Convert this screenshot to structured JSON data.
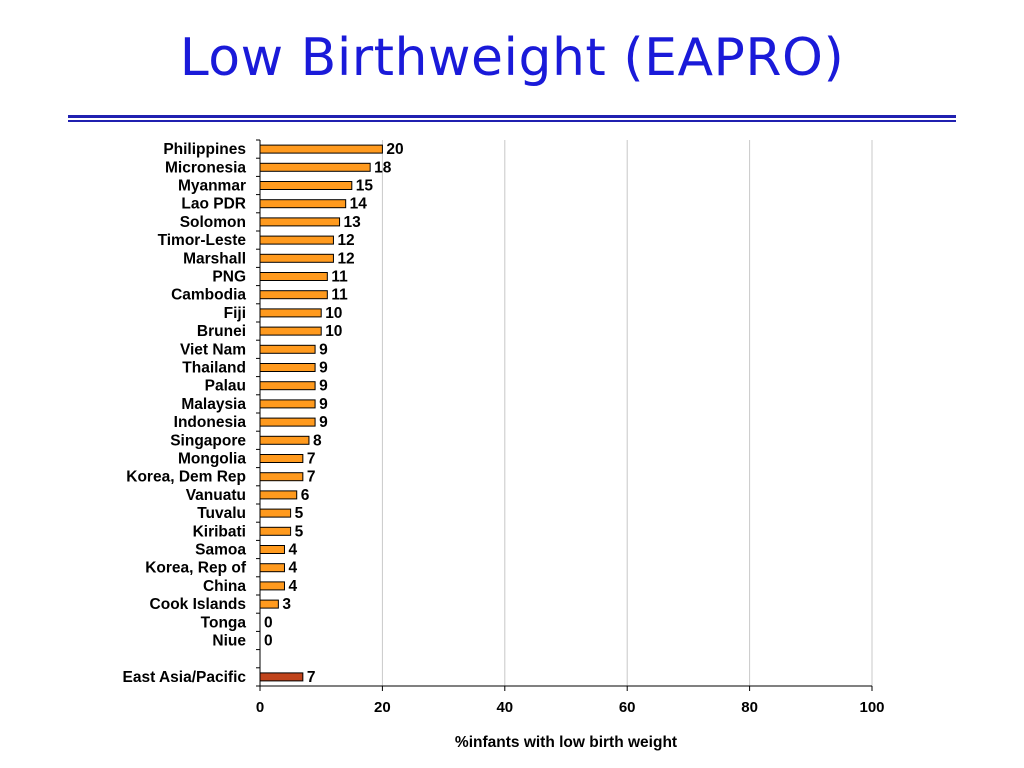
{
  "slide": {
    "title": "Low Birthweight (EAPRO)"
  },
  "chart_data": {
    "type": "bar",
    "orientation": "horizontal",
    "title": "",
    "xlabel": "%infants with low birth weight",
    "ylabel": "",
    "xlim": [
      0,
      100
    ],
    "x_ticks": [
      0,
      20,
      40,
      60,
      80,
      100
    ],
    "grid": "vertical",
    "legend": "none",
    "colors": {
      "bar": "#ff9a1e",
      "highlight_bar": "#c0441c",
      "bar_edge": "#000000",
      "grid": "#c8c8c8"
    },
    "categories": [
      "Philippines",
      "Micronesia",
      "Myanmar",
      "Lao PDR",
      "Solomon",
      "Timor-Leste",
      "Marshall",
      "PNG",
      "Cambodia",
      "Fiji",
      "Brunei",
      "Viet Nam",
      "Thailand",
      "Palau",
      "Malaysia",
      "Indonesia",
      "Singapore",
      "Mongolia",
      "Korea, Dem Rep",
      "Vanuatu",
      "Tuvalu",
      "Kiribati",
      "Samoa",
      "Korea, Rep of",
      "China",
      "Cook Islands",
      "Tonga",
      "Niue",
      "",
      "East Asia/Pacific"
    ],
    "values": [
      20,
      18,
      15,
      14,
      13,
      12,
      12,
      11,
      11,
      10,
      10,
      9,
      9,
      9,
      9,
      9,
      8,
      7,
      7,
      6,
      5,
      5,
      4,
      4,
      4,
      3,
      0,
      0,
      null,
      7
    ],
    "highlight": [
      "East Asia/Pacific"
    ]
  }
}
